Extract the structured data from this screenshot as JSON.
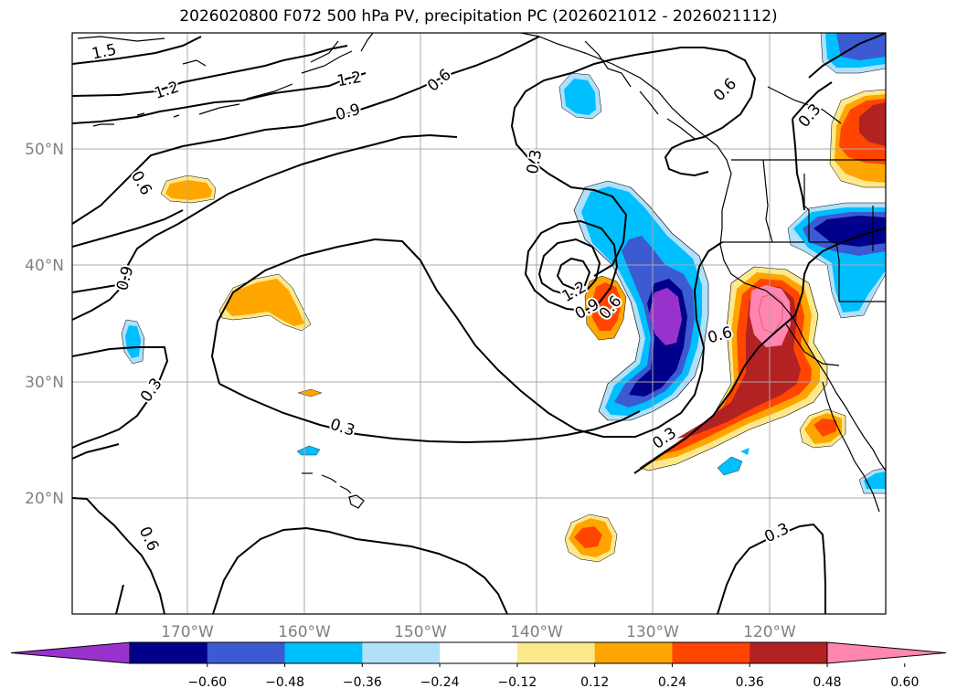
{
  "title": "2026020800 F072 500 hPa PV, precipitation PC (2026021012 - 2026021112)",
  "lat_labels": [
    "50°N",
    "40°N",
    "30°N",
    "20°N"
  ],
  "lon_labels": [
    "170°W",
    "160°W",
    "150°W",
    "140°W",
    "130°W",
    "120°W"
  ],
  "contour_labels": {
    "l15": "1.5",
    "l12a": "1.2",
    "l12b": "1.2",
    "l09a": "0.9",
    "l06a": "0.6",
    "l06b": "0.6",
    "l03a": "0.3",
    "l06c": "0.6",
    "l03b": "0.3",
    "l09b": "0.9",
    "l03c": "0.3",
    "l03d": "0.3",
    "l12c": "1.2",
    "l09c": "0.9",
    "l06d": "0.6",
    "l06e": "0.6",
    "l03e": "0.3",
    "l06f": "0.6",
    "l03f": "0.3",
    "l03g": "0.3"
  },
  "colorbar": {
    "colors": [
      "#9932cc",
      "#00008b",
      "#3c5ad2",
      "#00bfff",
      "#b0e0fa",
      "#ffffff",
      "#fde98c",
      "#ffa500",
      "#ff4500",
      "#b22222",
      "#ff86b0"
    ],
    "ticks": [
      "−0.60",
      "−0.48",
      "−0.36",
      "−0.24",
      "−0.12",
      "0.12",
      "0.24",
      "0.36",
      "0.48",
      "0.60"
    ]
  }
}
